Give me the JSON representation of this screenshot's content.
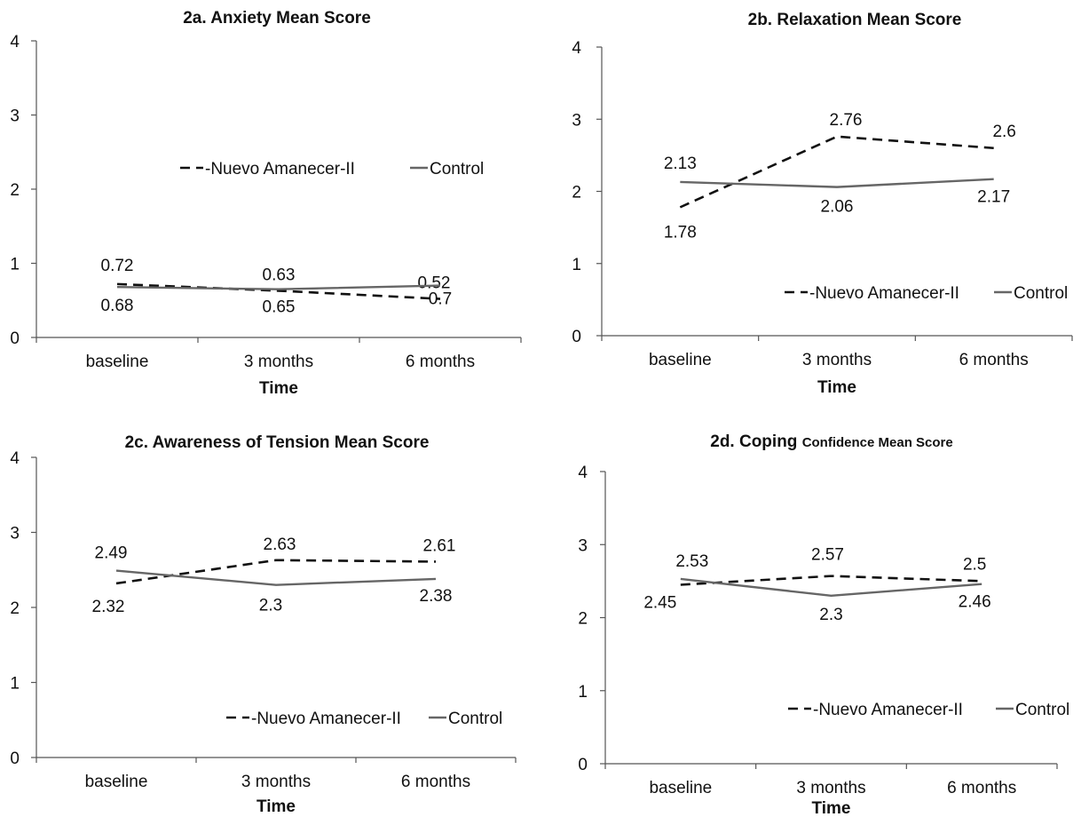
{
  "chart_data": [
    {
      "type": "line",
      "title": "2a. Anxiety Mean Score",
      "xlabel": "Time",
      "ylabel": "",
      "categories": [
        "baseline",
        "3 months",
        "6 months"
      ],
      "ylim": [
        0,
        4
      ],
      "yticks": [
        "0",
        "1",
        "2",
        "3",
        "4"
      ],
      "legend_position": "center",
      "series": [
        {
          "name": "Nuevo Amanecer-II",
          "style": "dashed",
          "color": "#111111",
          "values": [
            0.72,
            0.63,
            0.52
          ],
          "labels": [
            "0.72",
            "0.63",
            "0.52"
          ]
        },
        {
          "name": "Control",
          "style": "solid",
          "color": "#666666",
          "values": [
            0.68,
            0.65,
            0.7
          ],
          "labels": [
            "0.68",
            "0.65",
            "0.7"
          ]
        }
      ]
    },
    {
      "type": "line",
      "title": "2b. Relaxation Mean Score",
      "xlabel": "Time",
      "ylabel": "",
      "categories": [
        "baseline",
        "3 months",
        "6 months"
      ],
      "ylim": [
        0,
        4
      ],
      "yticks": [
        "0",
        "1",
        "2",
        "3",
        "4"
      ],
      "legend_position": "bottom-right",
      "series": [
        {
          "name": "Nuevo Amanecer-II",
          "style": "dashed",
          "color": "#111111",
          "values": [
            1.78,
            2.76,
            2.6
          ],
          "labels": [
            "1.78",
            "2.76",
            "2.6"
          ]
        },
        {
          "name": "Control",
          "style": "solid",
          "color": "#666666",
          "values": [
            2.13,
            2.06,
            2.17
          ],
          "labels": [
            "2.13",
            "2.06",
            "2.17"
          ]
        }
      ]
    },
    {
      "type": "line",
      "title": "2c. Awareness of Tension Mean Score",
      "xlabel": "Time",
      "ylabel": "",
      "categories": [
        "baseline",
        "3 months",
        "6 months"
      ],
      "ylim": [
        0,
        4
      ],
      "yticks": [
        "0",
        "1",
        "2",
        "3",
        "4"
      ],
      "legend_position": "bottom-right",
      "series": [
        {
          "name": "Nuevo Amanecer-II",
          "style": "dashed",
          "color": "#111111",
          "values": [
            2.32,
            2.63,
            2.61
          ],
          "labels": [
            "2.32",
            "2.63",
            "2.61"
          ]
        },
        {
          "name": "Control",
          "style": "solid",
          "color": "#666666",
          "values": [
            2.49,
            2.3,
            2.38
          ],
          "labels": [
            "2.49",
            "2.3",
            "2.38"
          ]
        }
      ]
    },
    {
      "type": "line",
      "title": "2d. Coping Confidence Mean Score",
      "title_parts": [
        "2d. Coping",
        "Confidence Mean Score"
      ],
      "xlabel": "Time",
      "ylabel": "",
      "categories": [
        "baseline",
        "3 months",
        "6 months"
      ],
      "ylim": [
        0,
        4
      ],
      "yticks": [
        "0",
        "1",
        "2",
        "3",
        "4"
      ],
      "legend_position": "bottom-right",
      "series": [
        {
          "name": "Nuevo Amanecer-II",
          "style": "dashed",
          "color": "#111111",
          "values": [
            2.45,
            2.57,
            2.5
          ],
          "labels": [
            "2.45",
            "2.57",
            "2.5"
          ]
        },
        {
          "name": "Control",
          "style": "solid",
          "color": "#666666",
          "values": [
            2.53,
            2.3,
            2.46
          ],
          "labels": [
            "2.53",
            "2.3",
            "2.46"
          ]
        }
      ]
    }
  ]
}
